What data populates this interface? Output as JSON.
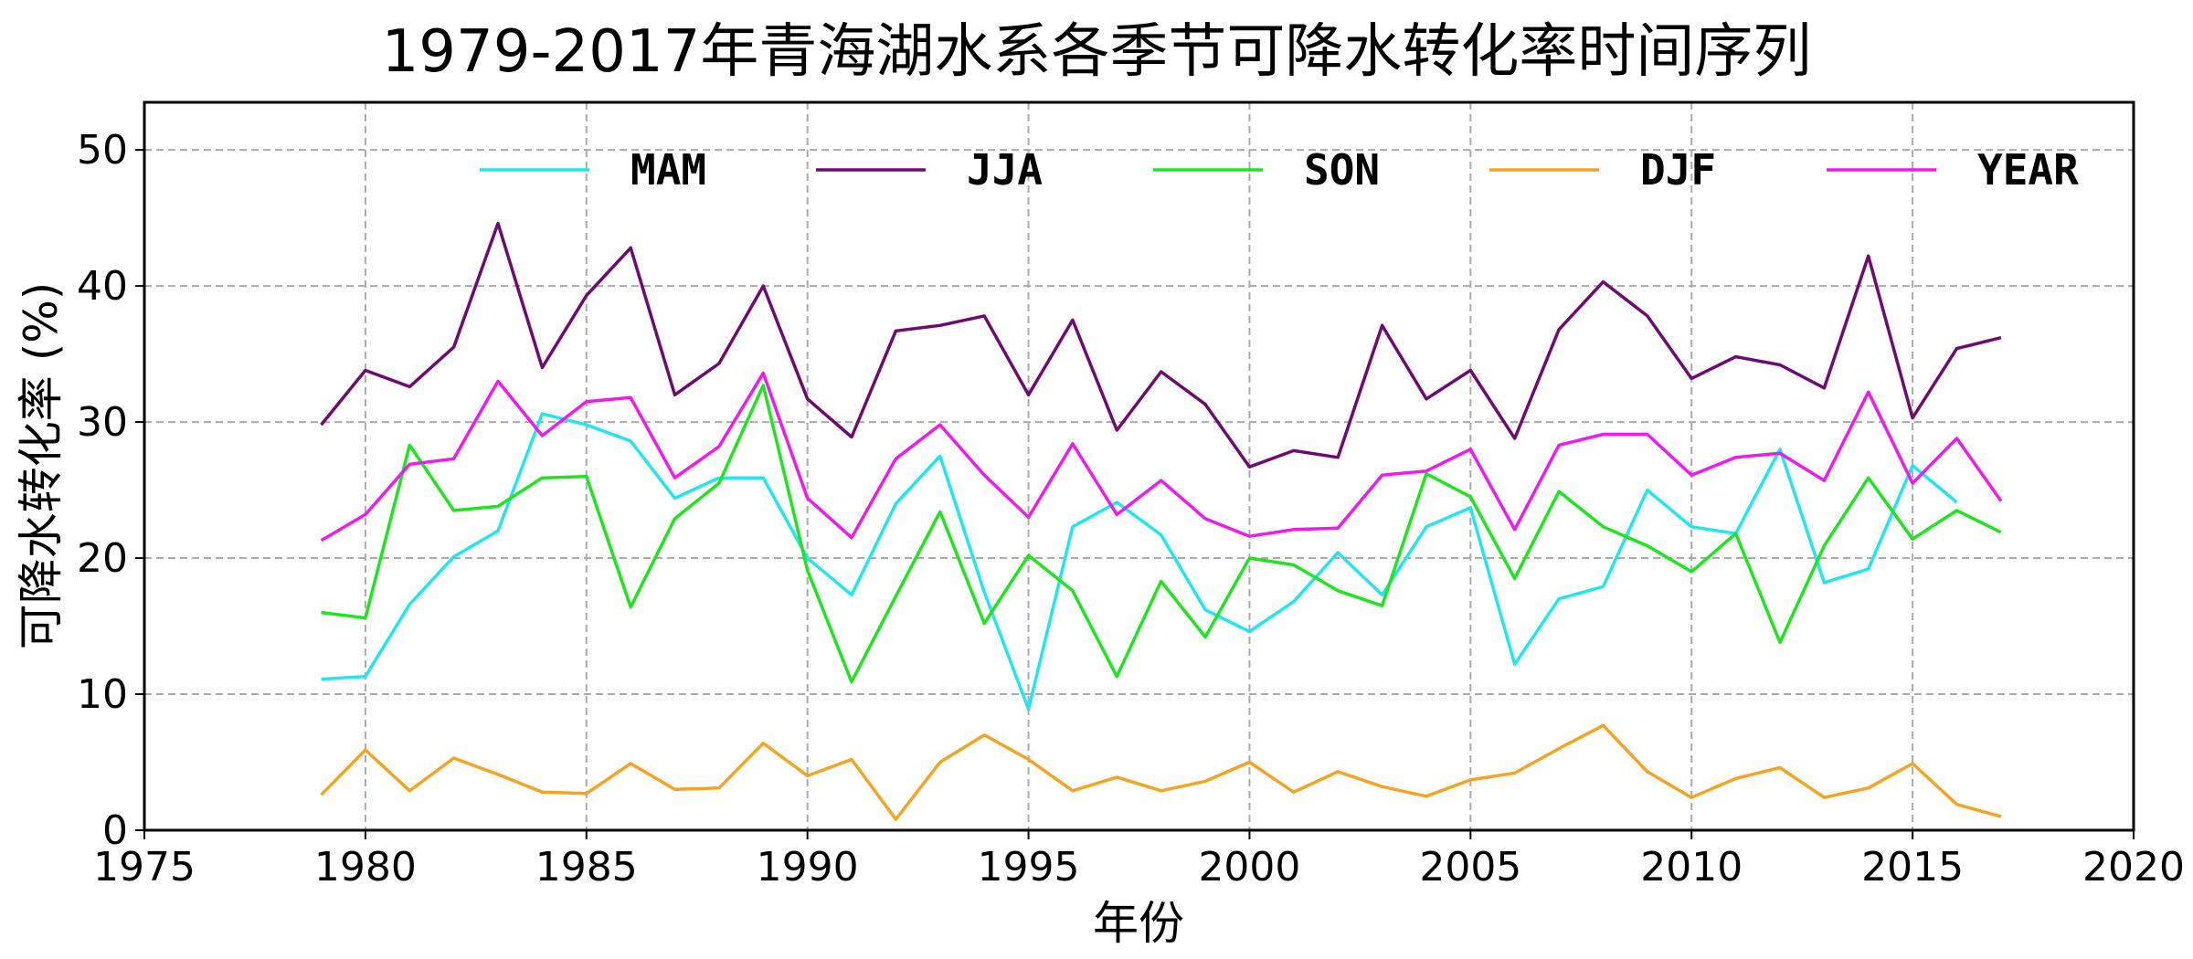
{
  "chart_data": {
    "type": "line",
    "title": "1979-2017年青海湖水系各季节可降水转化率时间序列",
    "xlabel": "年份",
    "ylabel": "可降水转化率 (%)",
    "xlim": [
      1975,
      2020
    ],
    "ylim": [
      0,
      53.5
    ],
    "xticks": [
      1975,
      1980,
      1985,
      1990,
      1995,
      2000,
      2005,
      2010,
      2015,
      2020
    ],
    "yticks": [
      0,
      10,
      20,
      30,
      40,
      50
    ],
    "grid": true,
    "legend_position": "top",
    "x": [
      1979,
      1980,
      1981,
      1982,
      1983,
      1984,
      1985,
      1986,
      1987,
      1988,
      1989,
      1990,
      1991,
      1992,
      1993,
      1994,
      1995,
      1996,
      1997,
      1998,
      1999,
      2000,
      2001,
      2002,
      2003,
      2004,
      2005,
      2006,
      2007,
      2008,
      2009,
      2010,
      2011,
      2012,
      2013,
      2014,
      2015,
      2016,
      2017
    ],
    "series": [
      {
        "name": "MAM",
        "color": "#22e6ef",
        "values": [
          11.1,
          11.3,
          16.6,
          20.1,
          22.0,
          30.6,
          29.8,
          28.6,
          24.4,
          25.9,
          25.9,
          20.0,
          17.3,
          24.0,
          27.5,
          17.5,
          8.9,
          22.3,
          24.1,
          21.7,
          16.2,
          14.6,
          16.8,
          20.4,
          17.3,
          22.3,
          23.7,
          12.2,
          17.0,
          17.9,
          25.0,
          22.3,
          21.8,
          28.0,
          18.2,
          19.2,
          26.8,
          24.1,
          null
        ]
      },
      {
        "name": "JJA",
        "color": "#6e0a70",
        "values": [
          29.8,
          33.8,
          32.6,
          35.5,
          44.6,
          34.0,
          39.3,
          42.8,
          32.0,
          34.3,
          40.0,
          31.7,
          28.9,
          36.7,
          37.1,
          37.8,
          32.0,
          37.5,
          29.4,
          33.7,
          31.3,
          26.7,
          27.9,
          27.4,
          37.1,
          31.7,
          33.8,
          28.8,
          36.8,
          40.3,
          37.8,
          33.2,
          34.8,
          34.2,
          32.5,
          42.2,
          30.3,
          35.4,
          36.2
        ]
      },
      {
        "name": "SON",
        "color": "#1ee61e",
        "values": [
          16.0,
          15.6,
          28.3,
          23.5,
          23.8,
          25.9,
          26.0,
          16.4,
          22.9,
          25.5,
          32.7,
          19.1,
          10.9,
          17.2,
          23.4,
          15.2,
          20.2,
          17.6,
          11.3,
          18.3,
          14.2,
          20.0,
          19.5,
          17.6,
          16.5,
          26.2,
          24.5,
          18.5,
          24.9,
          22.3,
          20.9,
          19.0,
          21.8,
          13.8,
          20.9,
          25.9,
          21.4,
          23.5,
          21.9
        ]
      },
      {
        "name": "DJF",
        "color": "#f4a423",
        "values": [
          2.6,
          5.9,
          2.9,
          5.3,
          4.1,
          2.8,
          2.7,
          4.9,
          3.0,
          3.1,
          6.4,
          4.0,
          5.2,
          0.8,
          5.0,
          7.0,
          5.2,
          2.9,
          3.9,
          2.9,
          3.6,
          5.0,
          2.8,
          4.3,
          3.2,
          2.5,
          3.7,
          4.2,
          6.0,
          7.7,
          4.3,
          2.4,
          3.8,
          4.6,
          2.4,
          3.1,
          4.9,
          1.9,
          1.0
        ]
      },
      {
        "name": "YEAR",
        "color": "#ee1aee",
        "values": [
          21.3,
          23.2,
          26.9,
          27.3,
          33.0,
          29.0,
          31.5,
          31.8,
          25.9,
          28.2,
          33.6,
          24.4,
          21.5,
          27.3,
          29.8,
          26.1,
          23.0,
          28.4,
          23.2,
          25.7,
          22.9,
          21.6,
          22.1,
          22.2,
          26.1,
          26.4,
          28.0,
          22.1,
          28.3,
          29.1,
          29.1,
          26.1,
          27.4,
          27.7,
          25.7,
          32.2,
          25.5,
          28.8,
          24.2
        ]
      }
    ]
  }
}
